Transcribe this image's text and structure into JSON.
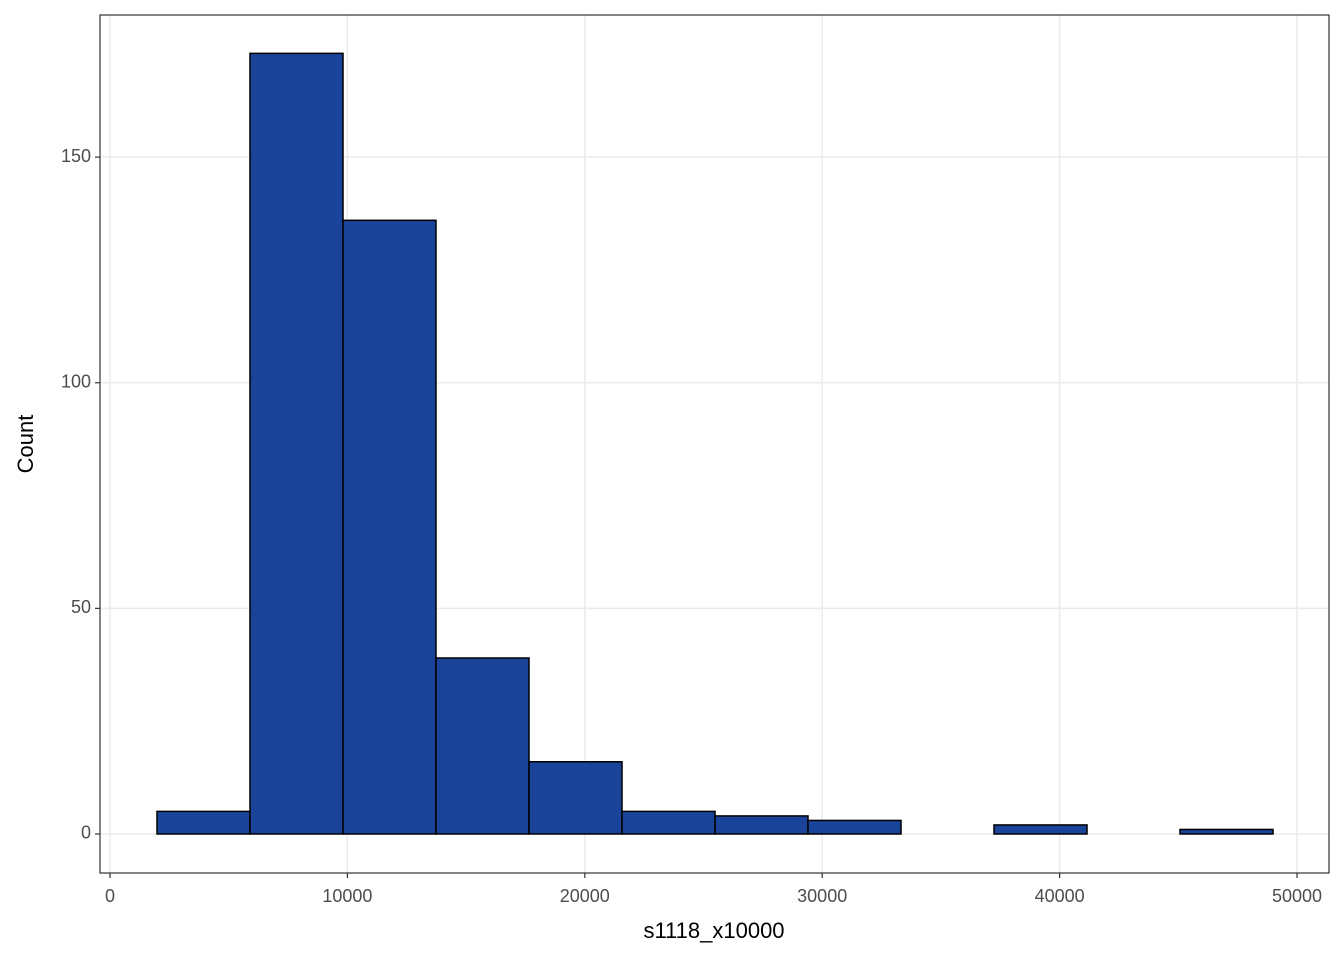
{
  "chart_data": {
    "type": "histogram",
    "x_label": "s1118_x10000",
    "y_label": "Count",
    "bins": [
      1980,
      5897,
      9815,
      13732,
      17650,
      21567,
      25485,
      29402,
      33320,
      37237,
      41155,
      45072,
      48990
    ],
    "values": [
      5,
      173,
      136,
      39,
      16,
      5,
      4,
      3,
      0,
      2,
      0,
      1
    ],
    "color": "#1a4499",
    "edgecolor": "#000000",
    "xlim": [
      -421,
      51348
    ],
    "xticks": [
      0,
      10000,
      20000,
      30000,
      40000,
      50000
    ],
    "ylim": [
      -8.65,
      181.5
    ],
    "yticks": [
      0,
      50,
      100,
      150
    ],
    "grid": true
  }
}
